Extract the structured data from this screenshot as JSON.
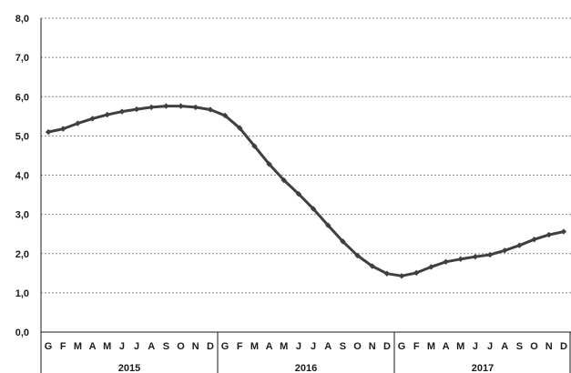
{
  "chart_data": {
    "type": "line",
    "title": "",
    "xlabel": "",
    "ylabel": "",
    "ylim": [
      0,
      8
    ],
    "yticks": [
      "0,0",
      "1,0",
      "2,0",
      "3,0",
      "4,0",
      "5,0",
      "6,0",
      "7,0",
      "8,0"
    ],
    "grid": "horizontal-dotted",
    "month_labels": [
      "G",
      "F",
      "M",
      "A",
      "M",
      "J",
      "J",
      "A",
      "S",
      "O",
      "N",
      "D"
    ],
    "years": [
      "2015",
      "2016",
      "2017"
    ],
    "series": [
      {
        "color": "#3f3f3f",
        "values": [
          5.1,
          5.18,
          5.32,
          5.44,
          5.54,
          5.62,
          5.68,
          5.73,
          5.76,
          5.76,
          5.73,
          5.67,
          5.52,
          5.2,
          4.74,
          4.28,
          3.87,
          3.52,
          3.14,
          2.72,
          2.31,
          1.95,
          1.68,
          1.49,
          1.43,
          1.51,
          1.66,
          1.79,
          1.86,
          1.92,
          1.97,
          2.08,
          2.21,
          2.36,
          2.48,
          2.56
        ]
      }
    ]
  }
}
